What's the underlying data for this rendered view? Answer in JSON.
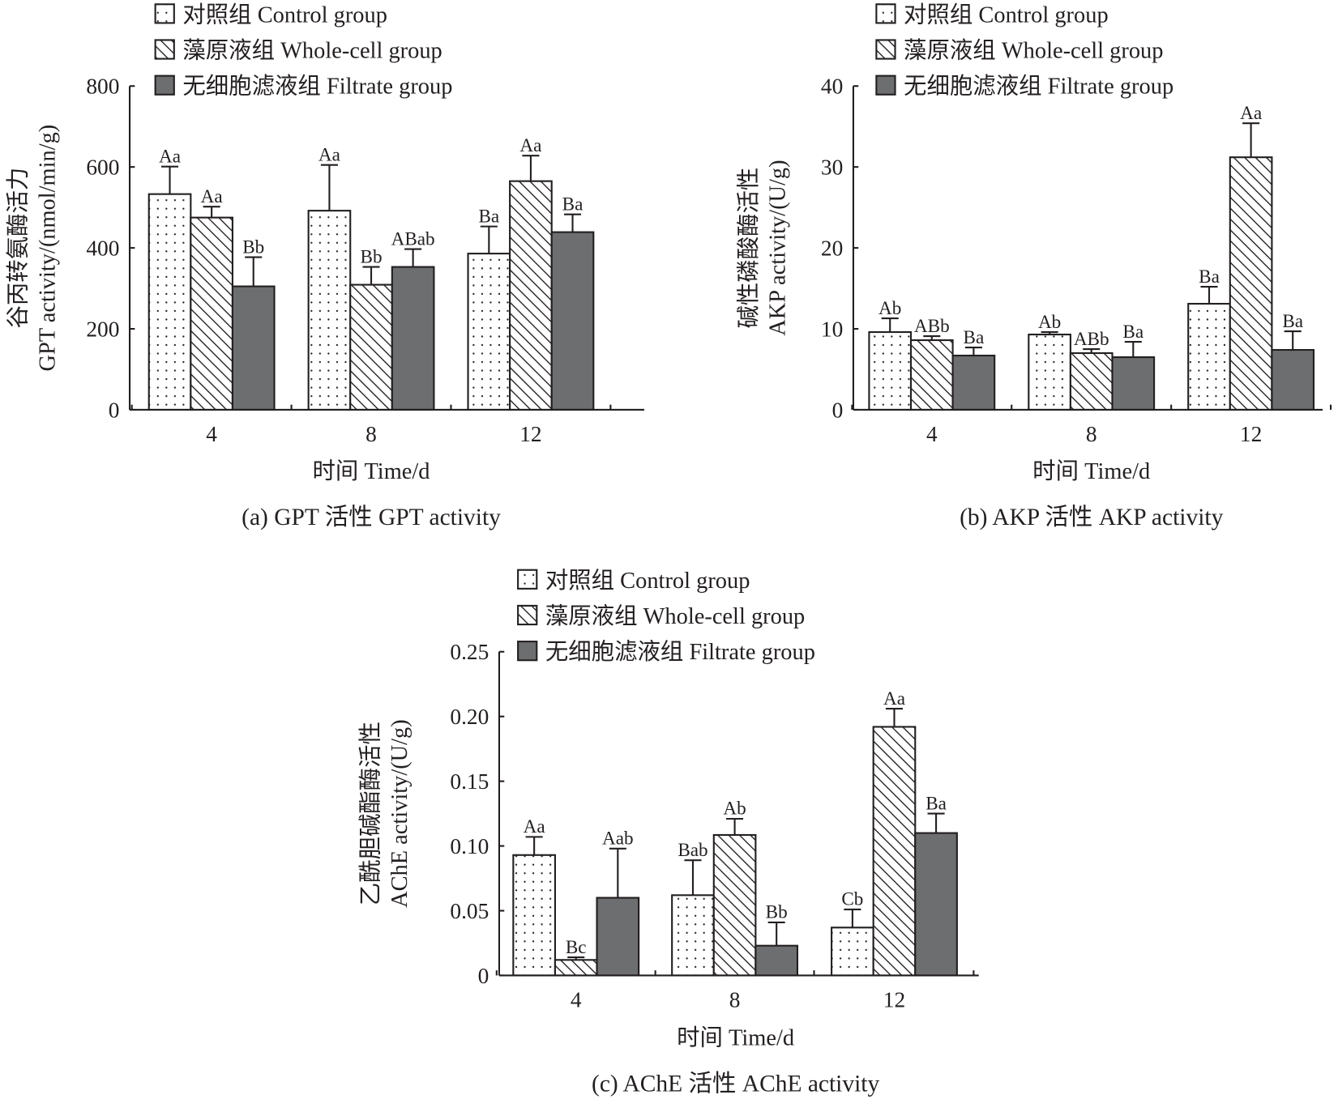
{
  "legend": [
    "对照组 Control group",
    "藻原液组 Whole-cell group",
    "无细胞滤液组 Filtrate group"
  ],
  "colors": {
    "control": "#ffffff",
    "whole": "#ffffff",
    "filtrate": "#6d6e70",
    "ink": "#231f20"
  },
  "chart_data": [
    {
      "type": "bar",
      "title": "(a) GPT 活性 GPT activity",
      "xlabel": "时间 Time/d",
      "ylabel": [
        "谷丙转氨酶活力",
        "GPT activity/(nmol/min/g)"
      ],
      "categories": [
        "4",
        "8",
        "12"
      ],
      "ylim": [
        0,
        800
      ],
      "yticks": [
        0,
        200,
        400,
        600,
        800
      ],
      "ytick_labels": [
        "0",
        "200",
        "400",
        "600",
        "800"
      ],
      "series": [
        {
          "name": "对照组 Control group",
          "values": [
            533,
            492,
            386
          ],
          "errors": [
            68,
            113,
            67
          ],
          "labels": [
            "Aa",
            "Aa",
            "Ba"
          ]
        },
        {
          "name": "藻原液组 Whole-cell group",
          "values": [
            475,
            309,
            565
          ],
          "errors": [
            27,
            44,
            63
          ],
          "labels": [
            "Aa",
            "Bb",
            "Aa"
          ]
        },
        {
          "name": "无细胞滤液组 Filtrate group",
          "values": [
            305,
            353,
            439
          ],
          "errors": [
            72,
            44,
            44
          ],
          "labels": [
            "Bb",
            "ABab",
            "Ba"
          ]
        }
      ]
    },
    {
      "type": "bar",
      "title": "(b) AKP 活性 AKP activity",
      "xlabel": "时间 Time/d",
      "ylabel": [
        "碱性磷酸酶活性",
        "AKP activity/(U/g)"
      ],
      "categories": [
        "4",
        "8",
        "12"
      ],
      "ylim": [
        0,
        40
      ],
      "yticks": [
        0,
        10,
        20,
        30,
        40
      ],
      "ytick_labels": [
        "0",
        "10",
        "20",
        "30",
        "40"
      ],
      "series": [
        {
          "name": "对照组 Control group",
          "values": [
            9.6,
            9.3,
            13.1
          ],
          "errors": [
            1.7,
            0.3,
            2.1
          ],
          "labels": [
            "Ab",
            "Ab",
            "Ba"
          ]
        },
        {
          "name": "藻原液组 Whole-cell group",
          "values": [
            8.6,
            7.0,
            31.2
          ],
          "errors": [
            0.5,
            0.5,
            4.2
          ],
          "labels": [
            "ABb",
            "ABb",
            "Aa"
          ]
        },
        {
          "name": "无细胞滤液组 Filtrate group",
          "values": [
            6.7,
            6.5,
            7.4
          ],
          "errors": [
            1.0,
            1.9,
            2.3
          ],
          "labels": [
            "Ba",
            "Ba",
            "Ba"
          ]
        }
      ]
    },
    {
      "type": "bar",
      "title": "(c) AChE 活性 AChE activity",
      "xlabel": "时间 Time/d",
      "ylabel": [
        "乙酰胆碱酯酶活性",
        "AChE activity/(U/g)"
      ],
      "categories": [
        "4",
        "8",
        "12"
      ],
      "ylim": [
        0,
        0.25
      ],
      "yticks": [
        0,
        0.05,
        0.1,
        0.15,
        0.2,
        0.25
      ],
      "ytick_labels": [
        "0",
        "0.05",
        "0.10",
        "0.15",
        "0.20",
        "0.25"
      ],
      "series": [
        {
          "name": "对照组 Control group",
          "values": [
            0.093,
            0.062,
            0.037
          ],
          "errors": [
            0.014,
            0.027,
            0.014
          ],
          "labels": [
            "Aa",
            "Bab",
            "Cb"
          ]
        },
        {
          "name": "藻原液组 Whole-cell group",
          "values": [
            0.012,
            0.1085,
            0.192
          ],
          "errors": [
            0.002,
            0.0125,
            0.014
          ],
          "labels": [
            "Bc",
            "Ab",
            "Aa"
          ]
        },
        {
          "name": "无细胞滤液组 Filtrate group",
          "values": [
            0.06,
            0.023,
            0.11
          ],
          "errors": [
            0.038,
            0.018,
            0.015
          ],
          "labels": [
            "Aab",
            "Bb",
            "Ba"
          ]
        }
      ]
    }
  ]
}
